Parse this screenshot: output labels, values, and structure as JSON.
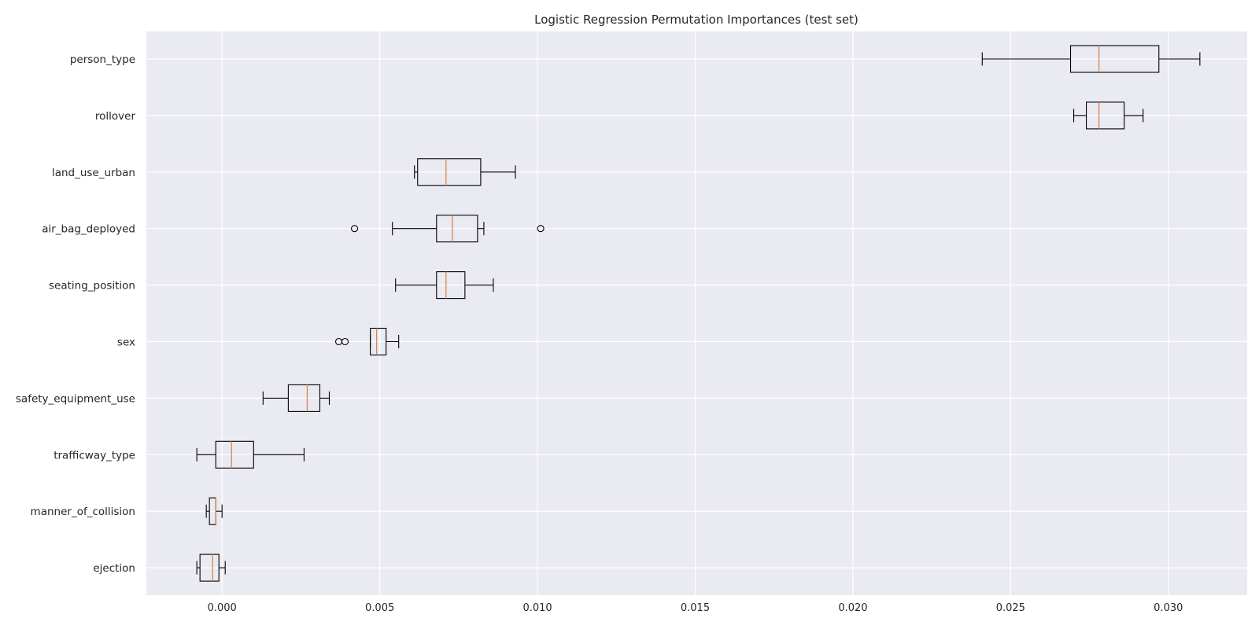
{
  "chart_data": {
    "type": "box",
    "orientation": "horizontal",
    "title": "Logistic Regression Permutation Importances (test set)",
    "xlabel": "",
    "ylabel": "",
    "xlim": [
      -0.0024,
      0.0325
    ],
    "xticks": [
      0.0,
      0.005,
      0.01,
      0.015,
      0.02,
      0.025,
      0.03
    ],
    "xtick_labels": [
      "0.000",
      "0.005",
      "0.010",
      "0.015",
      "0.020",
      "0.025",
      "0.030"
    ],
    "grid": true,
    "colors": {
      "background": "#eaeaf2",
      "grid": "#ffffff",
      "box_edge": "#000000",
      "median": "#dd8452"
    },
    "categories": [
      "person_type",
      "rollover",
      "land_use_urban",
      "air_bag_deployed",
      "seating_position",
      "sex",
      "safety_equipment_use",
      "trafficway_type",
      "manner_of_collision",
      "ejection"
    ],
    "boxes": [
      {
        "label": "person_type",
        "whislo": 0.0241,
        "q1": 0.0269,
        "med": 0.0278,
        "q3": 0.0297,
        "whishi": 0.031,
        "fliers": []
      },
      {
        "label": "rollover",
        "whislo": 0.027,
        "q1": 0.0274,
        "med": 0.0278,
        "q3": 0.0286,
        "whishi": 0.0292,
        "fliers": []
      },
      {
        "label": "land_use_urban",
        "whislo": 0.0061,
        "q1": 0.0062,
        "med": 0.0071,
        "q3": 0.0082,
        "whishi": 0.0093,
        "fliers": []
      },
      {
        "label": "air_bag_deployed",
        "whislo": 0.0054,
        "q1": 0.0068,
        "med": 0.0073,
        "q3": 0.0081,
        "whishi": 0.0083,
        "fliers": [
          0.0042,
          0.0101
        ]
      },
      {
        "label": "seating_position",
        "whislo": 0.0055,
        "q1": 0.0068,
        "med": 0.0071,
        "q3": 0.0077,
        "whishi": 0.0086,
        "fliers": []
      },
      {
        "label": "sex",
        "whislo": 0.0047,
        "q1": 0.0047,
        "med": 0.0049,
        "q3": 0.0052,
        "whishi": 0.0056,
        "fliers": [
          0.0037,
          0.0039
        ]
      },
      {
        "label": "safety_equipment_use",
        "whislo": 0.0013,
        "q1": 0.0021,
        "med": 0.0027,
        "q3": 0.0031,
        "whishi": 0.0034,
        "fliers": []
      },
      {
        "label": "trafficway_type",
        "whislo": -0.0008,
        "q1": -0.0002,
        "med": 0.0003,
        "q3": 0.001,
        "whishi": 0.0026,
        "fliers": []
      },
      {
        "label": "manner_of_collision",
        "whislo": -0.0005,
        "q1": -0.0004,
        "med": -0.0002,
        "q3": -0.0002,
        "whishi": 0.0,
        "fliers": []
      },
      {
        "label": "ejection",
        "whislo": -0.0008,
        "q1": -0.0007,
        "med": -0.0003,
        "q3": -0.0001,
        "whishi": 0.0001,
        "fliers": []
      }
    ]
  }
}
